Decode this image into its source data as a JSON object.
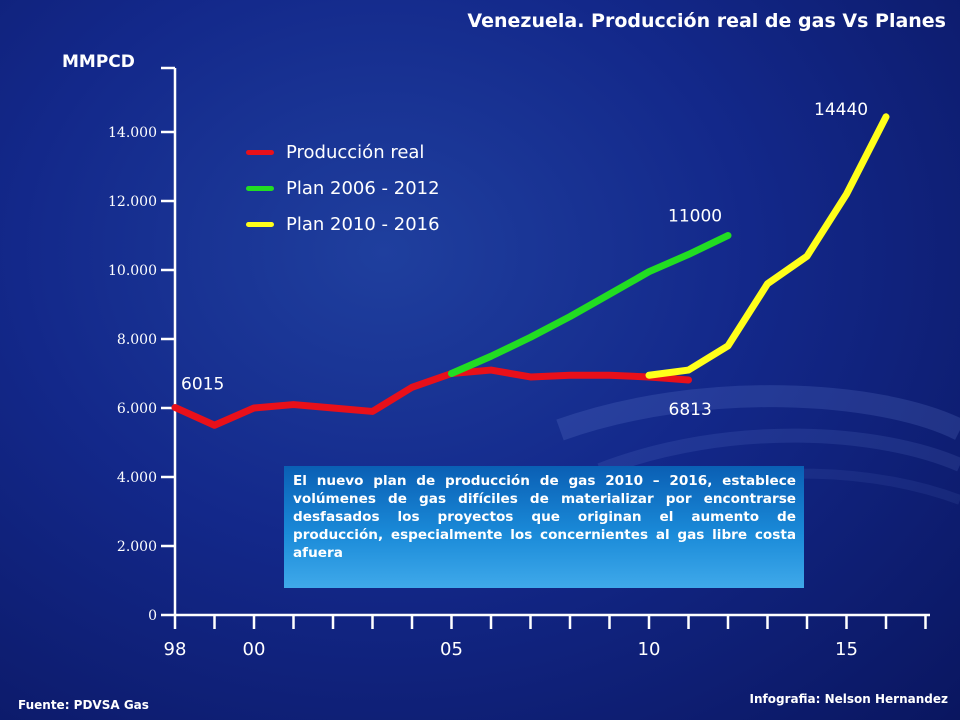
{
  "title": "Venezuela. Producción real de gas Vs Planes",
  "note": "El nuevo plan de producción de gas 2010 – 2016, establece volúmenes de gas difíciles de materializar por encontrarse desfasados los proyectos que originan el aumento de producción, especialmente los concernientes al gas libre costa afuera",
  "footer": {
    "source": "Fuente: PDVSA Gas",
    "credit": "Infografia: Nelson Hernandez"
  },
  "chart_data": {
    "type": "line",
    "ylabel": "MMPCD",
    "xlabel": "",
    "xlim": [
      1998,
      2017
    ],
    "ylim": [
      0,
      16000
    ],
    "yticks": [
      {
        "value": 0,
        "label": "0"
      },
      {
        "value": 2000,
        "label": "2.000"
      },
      {
        "value": 4000,
        "label": "4.000"
      },
      {
        "value": 6000,
        "label": "6.000"
      },
      {
        "value": 8000,
        "label": "8.000"
      },
      {
        "value": 10000,
        "label": "10.000"
      },
      {
        "value": 12000,
        "label": "12.000"
      },
      {
        "value": 14000,
        "label": "14.000"
      }
    ],
    "xticks": [
      1998,
      1999,
      2000,
      2001,
      2002,
      2003,
      2004,
      2005,
      2006,
      2007,
      2008,
      2009,
      2010,
      2011,
      2012,
      2013,
      2014,
      2015,
      2016,
      2017
    ],
    "xticklabels": [
      {
        "value": 1998,
        "label": "98"
      },
      {
        "value": 2000,
        "label": "00"
      },
      {
        "value": 2005,
        "label": "05"
      },
      {
        "value": 2010,
        "label": "10"
      },
      {
        "value": 2015,
        "label": "15"
      }
    ],
    "legend_position": "top-left",
    "series": [
      {
        "name": "Producción real",
        "color": "#e8101a",
        "x": [
          1998,
          1999,
          2000,
          2001,
          2002,
          2003,
          2004,
          2005,
          2006,
          2007,
          2008,
          2009,
          2010,
          2011
        ],
        "y": [
          6015,
          5500,
          6000,
          6100,
          6000,
          5900,
          6600,
          7000,
          7100,
          6900,
          6950,
          6950,
          6900,
          6813
        ]
      },
      {
        "name": "Plan 2006 - 2012",
        "color": "#22dd22",
        "x": [
          2005,
          2006,
          2007,
          2008,
          2009,
          2010,
          2011,
          2012
        ],
        "y": [
          7000,
          7500,
          8050,
          8650,
          9300,
          9950,
          10450,
          11000
        ]
      },
      {
        "name": "Plan 2010 - 2016",
        "color": "#ffff1a",
        "x": [
          2010,
          2011,
          2012,
          2013,
          2014,
          2015,
          2016
        ],
        "y": [
          6950,
          7100,
          7800,
          9600,
          10400,
          12200,
          14440
        ]
      }
    ],
    "data_labels": [
      {
        "text": "6015",
        "x": 1998,
        "y": 6015
      },
      {
        "text": "11000",
        "x": 2012,
        "y": 11000
      },
      {
        "text": "6813",
        "x": 2011,
        "y": 6813
      },
      {
        "text": "14440",
        "x": 2016,
        "y": 14440
      }
    ]
  }
}
